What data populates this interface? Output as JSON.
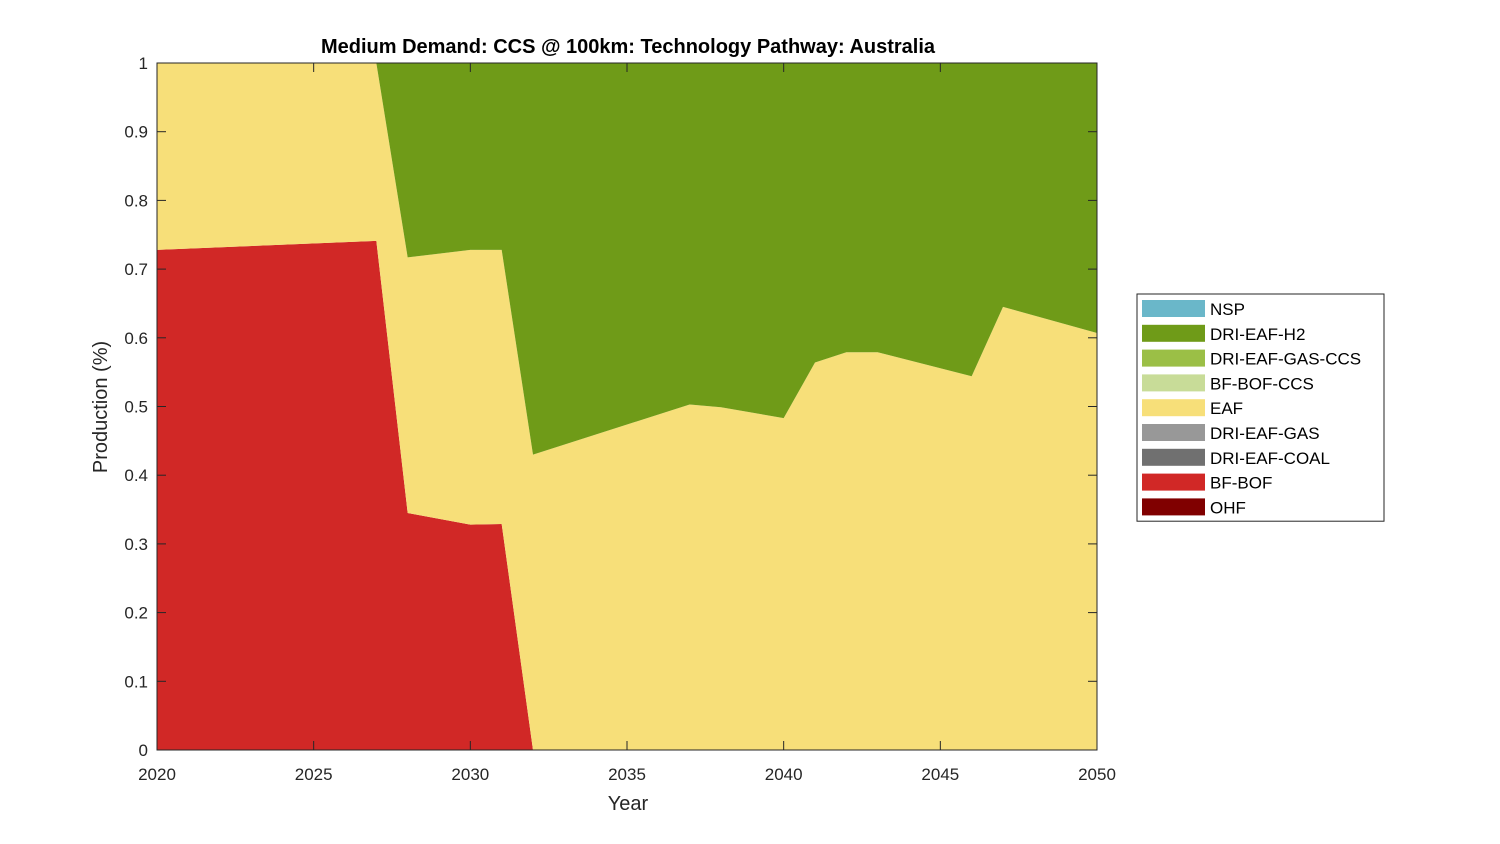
{
  "chart_data": {
    "type": "area",
    "stacked": true,
    "title": "Medium Demand: CCS @ 100km: Technology Pathway: Australia",
    "xlabel": "Year",
    "ylabel": "Production (%)",
    "xlim": [
      2020,
      2050
    ],
    "ylim": [
      0,
      1
    ],
    "x_ticks": [
      "2020",
      "2025",
      "2030",
      "2035",
      "2040",
      "2045",
      "2050"
    ],
    "y_ticks": [
      "0",
      "0.1",
      "0.2",
      "0.3",
      "0.4",
      "0.5",
      "0.6",
      "0.7",
      "0.8",
      "0.9",
      "1"
    ],
    "grid": false,
    "legend_position": "right",
    "x": [
      2020,
      2027,
      2028,
      2030,
      2031,
      2032,
      2037,
      2038,
      2040,
      2041,
      2042,
      2043,
      2046,
      2047,
      2050
    ],
    "series": [
      {
        "name": "OHF",
        "color": "#800000",
        "values": [
          0,
          0,
          0,
          0,
          0,
          0,
          0,
          0,
          0,
          0,
          0,
          0,
          0,
          0,
          0
        ]
      },
      {
        "name": "BF-BOF",
        "color": "#d12826",
        "values": [
          0.728,
          0.741,
          0.345,
          0.328,
          0.329,
          0,
          0,
          0,
          0,
          0,
          0,
          0,
          0,
          0,
          0
        ]
      },
      {
        "name": "DRI-EAF-COAL",
        "color": "#707070",
        "values": [
          0,
          0,
          0,
          0,
          0,
          0,
          0,
          0,
          0,
          0,
          0,
          0,
          0,
          0,
          0
        ]
      },
      {
        "name": "DRI-EAF-GAS",
        "color": "#989898",
        "values": [
          0,
          0,
          0,
          0,
          0,
          0,
          0,
          0,
          0,
          0,
          0,
          0,
          0,
          0,
          0
        ]
      },
      {
        "name": "EAF",
        "color": "#f7df79",
        "values": [
          0.272,
          0.259,
          0.372,
          0.4,
          0.399,
          0.43,
          0.503,
          0.499,
          0.483,
          0.564,
          0.579,
          0.579,
          0.544,
          0.645,
          0.607
        ]
      },
      {
        "name": "BF-BOF-CCS",
        "color": "#c8dc98",
        "values": [
          0,
          0,
          0,
          0,
          0,
          0,
          0,
          0,
          0,
          0,
          0,
          0,
          0,
          0,
          0
        ]
      },
      {
        "name": "DRI-EAF-GAS-CCS",
        "color": "#9bbf46",
        "values": [
          0,
          0,
          0,
          0,
          0,
          0,
          0,
          0,
          0,
          0,
          0,
          0,
          0,
          0,
          0
        ]
      },
      {
        "name": "DRI-EAF-H2",
        "color": "#6f9b18",
        "values": [
          0,
          0,
          0.283,
          0.272,
          0.272,
          0.57,
          0.497,
          0.501,
          0.517,
          0.436,
          0.421,
          0.421,
          0.456,
          0.355,
          0.393
        ]
      },
      {
        "name": "NSP",
        "color": "#6ab7c9",
        "values": [
          0,
          0,
          0,
          0,
          0,
          0,
          0,
          0,
          0,
          0,
          0,
          0,
          0,
          0,
          0
        ]
      }
    ],
    "legend_order": [
      "NSP",
      "DRI-EAF-H2",
      "DRI-EAF-GAS-CCS",
      "BF-BOF-CCS",
      "EAF",
      "DRI-EAF-GAS",
      "DRI-EAF-COAL",
      "BF-BOF",
      "OHF"
    ]
  }
}
